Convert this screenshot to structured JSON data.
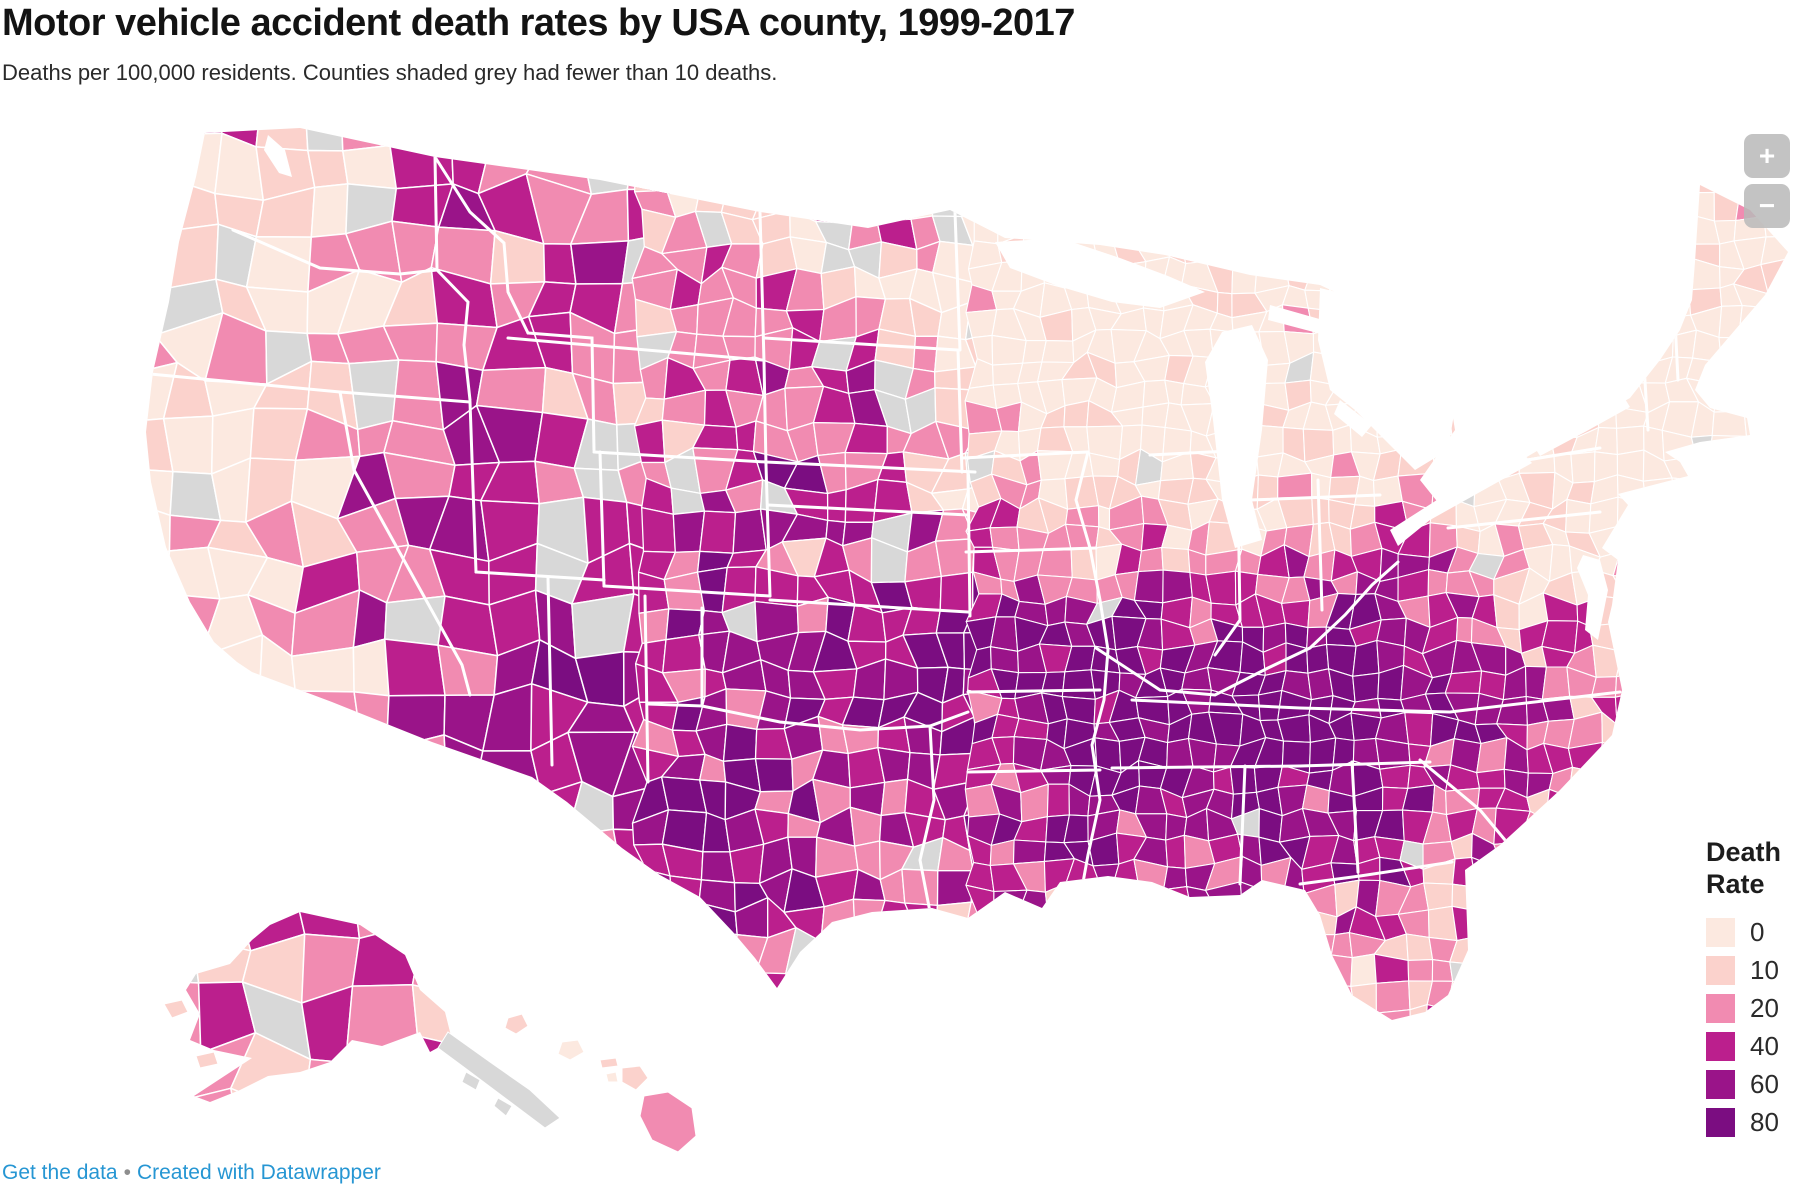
{
  "title": "Motor vehicle accident death rates by USA county, 1999-2017",
  "subtitle": "Deaths per 100,000 residents. Counties shaded grey had fewer than 10 deaths.",
  "map": {
    "type": "choropleth",
    "region": "USA counties",
    "border_color": "#ffffff",
    "no_data_color": "#d8d8d8",
    "no_data_meaning": "fewer than 10 deaths"
  },
  "legend": {
    "title": "Death Rate",
    "items": [
      {
        "label": "0",
        "color": "#fce9e0"
      },
      {
        "label": "10",
        "color": "#fbd2cc"
      },
      {
        "label": "20",
        "color": "#f18bb1"
      },
      {
        "label": "40",
        "color": "#bb1f8d"
      },
      {
        "label": "60",
        "color": "#9a1489"
      },
      {
        "label": "80",
        "color": "#7b0d81"
      }
    ]
  },
  "zoom_controls": {
    "zoom_in": "+",
    "zoom_out": "−"
  },
  "footer": {
    "get_data_label": "Get the data",
    "separator": "•",
    "credit_label": "Created with Datawrapper",
    "link_color": "#2696d3"
  }
}
